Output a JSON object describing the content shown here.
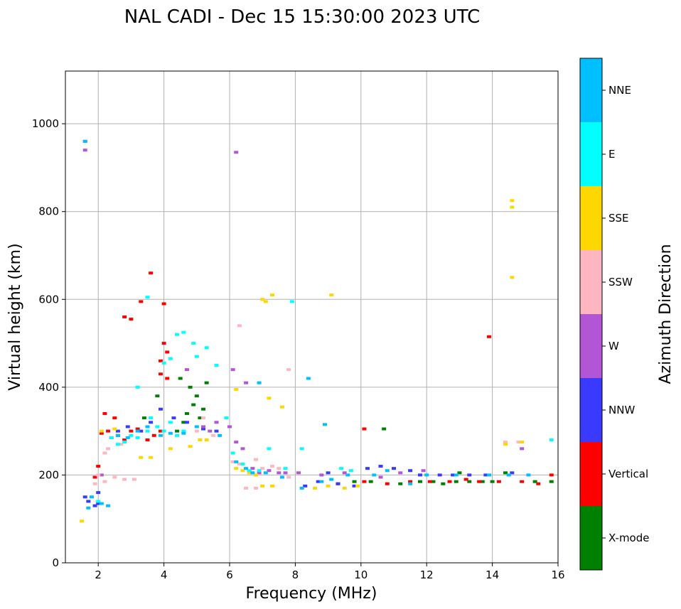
{
  "chart_data": {
    "type": "scatter",
    "title": "NAL CADI - Dec 15 15:30:00 2023 UTC",
    "xlabel": "Frequency (MHz)",
    "ylabel": "Virtual height (km)",
    "xlim": [
      1,
      16
    ],
    "ylim": [
      0,
      1120
    ],
    "xticks": [
      2,
      4,
      6,
      8,
      10,
      12,
      14,
      16
    ],
    "yticks": [
      0,
      200,
      400,
      600,
      800,
      1000
    ],
    "grid": true,
    "colorbar": {
      "label": "Azimuth Direction",
      "categories": [
        "X-mode",
        "Vertical",
        "NNW",
        "W",
        "SSW",
        "SSE",
        "E",
        "NNE"
      ],
      "colors": [
        "#008000",
        "#ff0000",
        "#3a3aff",
        "#b256d6",
        "#ffb6c1",
        "#ffd700",
        "#00ffff",
        "#00bfff"
      ]
    },
    "series": [
      {
        "name": "X-mode",
        "points": [
          [
            4.4,
            300
          ],
          [
            4.6,
            320
          ],
          [
            4.7,
            340
          ],
          [
            4.9,
            360
          ],
          [
            5.0,
            380
          ],
          [
            5.2,
            350
          ],
          [
            4.8,
            400
          ],
          [
            4.5,
            420
          ],
          [
            3.4,
            330
          ],
          [
            3.8,
            380
          ],
          [
            5.3,
            410
          ],
          [
            9.8,
            185
          ],
          [
            10.3,
            185
          ],
          [
            10.7,
            305
          ],
          [
            11.2,
            180
          ],
          [
            11.8,
            185
          ],
          [
            12.2,
            185
          ],
          [
            12.5,
            180
          ],
          [
            12.9,
            185
          ],
          [
            13.3,
            185
          ],
          [
            13.7,
            185
          ],
          [
            14.0,
            185
          ],
          [
            14.4,
            205
          ],
          [
            15.3,
            185
          ],
          [
            15.8,
            185
          ],
          [
            13.0,
            205
          ],
          [
            5.1,
            330
          ]
        ]
      },
      {
        "name": "Vertical",
        "points": [
          [
            2.1,
            295
          ],
          [
            2.3,
            300
          ],
          [
            2.4,
            285
          ],
          [
            2.6,
            290
          ],
          [
            2.8,
            280
          ],
          [
            3.0,
            300
          ],
          [
            3.2,
            305
          ],
          [
            3.5,
            280
          ],
          [
            3.7,
            290
          ],
          [
            3.9,
            300
          ],
          [
            4.0,
            500
          ],
          [
            3.9,
            460
          ],
          [
            4.1,
            480
          ],
          [
            4.0,
            590
          ],
          [
            3.6,
            660
          ],
          [
            3.3,
            595
          ],
          [
            2.8,
            560
          ],
          [
            3.0,
            555
          ],
          [
            2.2,
            340
          ],
          [
            2.5,
            330
          ],
          [
            3.9,
            430
          ],
          [
            4.1,
            420
          ],
          [
            1.9,
            195
          ],
          [
            2.0,
            220
          ],
          [
            9.3,
            180
          ],
          [
            10.1,
            185
          ],
          [
            10.1,
            305
          ],
          [
            10.8,
            180
          ],
          [
            11.5,
            185
          ],
          [
            12.1,
            185
          ],
          [
            12.7,
            185
          ],
          [
            13.2,
            190
          ],
          [
            13.6,
            185
          ],
          [
            14.2,
            185
          ],
          [
            14.9,
            185
          ],
          [
            15.4,
            180
          ],
          [
            15.8,
            200
          ],
          [
            13.9,
            515
          ]
        ]
      },
      {
        "name": "NNW",
        "points": [
          [
            1.6,
            150
          ],
          [
            1.7,
            140
          ],
          [
            2.0,
            160
          ],
          [
            2.6,
            300
          ],
          [
            2.9,
            310
          ],
          [
            3.3,
            300
          ],
          [
            3.6,
            320
          ],
          [
            3.9,
            350
          ],
          [
            4.3,
            330
          ],
          [
            4.7,
            320
          ],
          [
            5.2,
            305
          ],
          [
            5.6,
            300
          ],
          [
            8.3,
            175
          ],
          [
            8.7,
            185
          ],
          [
            9.0,
            205
          ],
          [
            9.3,
            180
          ],
          [
            9.8,
            175
          ],
          [
            10.2,
            215
          ],
          [
            10.6,
            220
          ],
          [
            11.0,
            215
          ],
          [
            11.5,
            210
          ],
          [
            11.8,
            200
          ],
          [
            12.4,
            200
          ],
          [
            12.8,
            200
          ],
          [
            13.3,
            200
          ],
          [
            13.8,
            200
          ],
          [
            14.6,
            205
          ],
          [
            1.9,
            130
          ],
          [
            2.0,
            135
          ]
        ]
      },
      {
        "name": "W",
        "points": [
          [
            1.6,
            960
          ],
          [
            1.6,
            940
          ],
          [
            2.1,
            200
          ],
          [
            5.2,
            310
          ],
          [
            5.4,
            300
          ],
          [
            5.6,
            320
          ],
          [
            6.0,
            310
          ],
          [
            6.2,
            275
          ],
          [
            6.4,
            260
          ],
          [
            6.5,
            410
          ],
          [
            6.7,
            215
          ],
          [
            6.9,
            205
          ],
          [
            7.2,
            210
          ],
          [
            7.5,
            205
          ],
          [
            7.7,
            205
          ],
          [
            8.1,
            205
          ],
          [
            8.8,
            200
          ],
          [
            9.5,
            205
          ],
          [
            10.6,
            195
          ],
          [
            11.2,
            205
          ],
          [
            11.9,
            210
          ],
          [
            6.2,
            935
          ],
          [
            14.9,
            260
          ],
          [
            6.1,
            440
          ],
          [
            4.7,
            440
          ]
        ]
      },
      {
        "name": "SSW",
        "points": [
          [
            1.9,
            180
          ],
          [
            2.0,
            200
          ],
          [
            2.2,
            185
          ],
          [
            2.5,
            195
          ],
          [
            2.8,
            190
          ],
          [
            3.1,
            190
          ],
          [
            5.0,
            300
          ],
          [
            5.2,
            330
          ],
          [
            5.5,
            290
          ],
          [
            6.1,
            230
          ],
          [
            6.3,
            225
          ],
          [
            6.5,
            170
          ],
          [
            6.8,
            170
          ],
          [
            7.0,
            215
          ],
          [
            7.3,
            220
          ],
          [
            7.5,
            215
          ],
          [
            7.8,
            195
          ],
          [
            2.2,
            250
          ],
          [
            2.3,
            260
          ],
          [
            2.7,
            270
          ],
          [
            14.4,
            275
          ],
          [
            14.8,
            275
          ],
          [
            6.3,
            540
          ],
          [
            7.8,
            440
          ],
          [
            6.8,
            235
          ]
        ]
      },
      {
        "name": "SSE",
        "points": [
          [
            1.5,
            95
          ],
          [
            2.1,
            300
          ],
          [
            2.5,
            305
          ],
          [
            3.3,
            240
          ],
          [
            3.6,
            240
          ],
          [
            4.2,
            260
          ],
          [
            4.8,
            265
          ],
          [
            5.1,
            280
          ],
          [
            5.3,
            280
          ],
          [
            6.2,
            215
          ],
          [
            6.4,
            210
          ],
          [
            6.6,
            205
          ],
          [
            6.8,
            200
          ],
          [
            7.0,
            175
          ],
          [
            7.3,
            175
          ],
          [
            8.6,
            170
          ],
          [
            9.0,
            175
          ],
          [
            9.5,
            170
          ],
          [
            9.9,
            175
          ],
          [
            7.1,
            595
          ],
          [
            7.3,
            610
          ],
          [
            7.0,
            600
          ],
          [
            9.1,
            610
          ],
          [
            14.6,
            825
          ],
          [
            14.6,
            810
          ],
          [
            14.6,
            650
          ],
          [
            14.4,
            270
          ],
          [
            14.9,
            275
          ],
          [
            6.2,
            395
          ],
          [
            7.2,
            375
          ],
          [
            7.6,
            355
          ]
        ]
      },
      {
        "name": "E",
        "points": [
          [
            2.4,
            285
          ],
          [
            2.6,
            270
          ],
          [
            2.8,
            275
          ],
          [
            3.0,
            290
          ],
          [
            3.2,
            285
          ],
          [
            3.5,
            300
          ],
          [
            3.6,
            330
          ],
          [
            3.8,
            310
          ],
          [
            4.0,
            300
          ],
          [
            4.2,
            320
          ],
          [
            4.4,
            290
          ],
          [
            4.6,
            300
          ],
          [
            4.0,
            455
          ],
          [
            4.2,
            465
          ],
          [
            4.4,
            520
          ],
          [
            4.6,
            525
          ],
          [
            4.9,
            500
          ],
          [
            5.3,
            490
          ],
          [
            5.6,
            450
          ],
          [
            5.9,
            330
          ],
          [
            6.1,
            250
          ],
          [
            6.4,
            225
          ],
          [
            6.6,
            210
          ],
          [
            6.9,
            210
          ],
          [
            7.2,
            260
          ],
          [
            7.7,
            215
          ],
          [
            7.9,
            595
          ],
          [
            8.2,
            260
          ],
          [
            9.4,
            215
          ],
          [
            9.7,
            210
          ],
          [
            15.8,
            280
          ],
          [
            3.5,
            605
          ],
          [
            3.2,
            400
          ],
          [
            5.0,
            470
          ],
          [
            2.0,
            140
          ]
        ]
      },
      {
        "name": "NNE",
        "points": [
          [
            1.6,
            960
          ],
          [
            1.8,
            150
          ],
          [
            1.7,
            125
          ],
          [
            2.1,
            135
          ],
          [
            2.3,
            130
          ],
          [
            2.6,
            290
          ],
          [
            2.9,
            285
          ],
          [
            3.2,
            300
          ],
          [
            3.5,
            310
          ],
          [
            3.9,
            290
          ],
          [
            4.2,
            295
          ],
          [
            4.6,
            295
          ],
          [
            5.0,
            310
          ],
          [
            5.7,
            290
          ],
          [
            6.2,
            230
          ],
          [
            6.5,
            215
          ],
          [
            6.7,
            205
          ],
          [
            7.1,
            205
          ],
          [
            7.6,
            195
          ],
          [
            8.2,
            170
          ],
          [
            8.8,
            185
          ],
          [
            9.1,
            190
          ],
          [
            9.6,
            200
          ],
          [
            10.4,
            200
          ],
          [
            10.8,
            210
          ],
          [
            11.5,
            180
          ],
          [
            12.0,
            200
          ],
          [
            12.9,
            200
          ],
          [
            13.9,
            200
          ],
          [
            14.5,
            200
          ],
          [
            15.1,
            200
          ],
          [
            6.9,
            410
          ],
          [
            8.9,
            315
          ],
          [
            8.4,
            420
          ]
        ]
      }
    ]
  }
}
